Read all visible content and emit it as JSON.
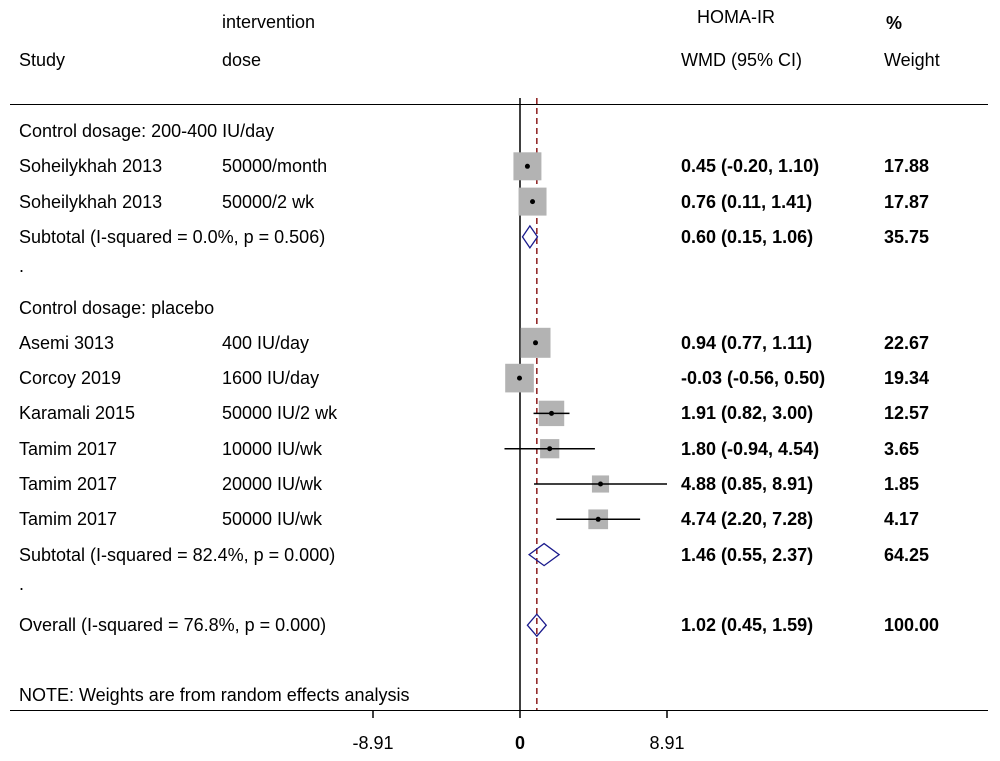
{
  "header": {
    "col_intervention_line1": "intervention",
    "col_intervention_line2": "dose",
    "col_study": "Study",
    "col_effect_line1": "HOMA-IR",
    "col_effect_line2": "WMD (95% CI)",
    "col_weight_line1": "%",
    "col_weight_line2": "Weight"
  },
  "note": "NOTE: Weights are from random effects analysis",
  "chart_data": {
    "type": "forest",
    "xlim": [
      -8.91,
      8.91
    ],
    "xticks": [
      "-8.91",
      "0",
      "8.91"
    ],
    "overall_line": 1.02,
    "rows": [
      {
        "kind": "group",
        "label": "Control dosage: 200-400 IU/day"
      },
      {
        "kind": "study",
        "study": "Soheilykhah 2013",
        "dose": "50000/month",
        "est": 0.45,
        "lo": -0.2,
        "hi": 1.1,
        "ci_text": "0.45 (-0.20, 1.10)",
        "weight": 17.88,
        "weight_text": "17.88"
      },
      {
        "kind": "study",
        "study": "Soheilykhah 2013",
        "dose": "50000/2 wk",
        "est": 0.76,
        "lo": 0.11,
        "hi": 1.41,
        "ci_text": "0.76 (0.11, 1.41)",
        "weight": 17.87,
        "weight_text": "17.87"
      },
      {
        "kind": "subtotal",
        "label": "Subtotal  (I-squared = 0.0%, p = 0.506)",
        "est": 0.6,
        "lo": 0.15,
        "hi": 1.06,
        "ci_text": "0.60 (0.15, 1.06)",
        "weight_text": "35.75"
      },
      {
        "kind": "spacer",
        "label": "."
      },
      {
        "kind": "group",
        "label": "Control dosage: placebo"
      },
      {
        "kind": "study",
        "study": "Asemi 3013",
        "dose": "400 IU/day",
        "est": 0.94,
        "lo": 0.77,
        "hi": 1.11,
        "ci_text": "0.94 (0.77, 1.11)",
        "weight": 22.67,
        "weight_text": "22.67"
      },
      {
        "kind": "study",
        "study": "Corcoy 2019",
        "dose": "1600 IU/day",
        "est": -0.03,
        "lo": -0.56,
        "hi": 0.5,
        "ci_text": "-0.03 (-0.56, 0.50)",
        "weight": 19.34,
        "weight_text": "19.34"
      },
      {
        "kind": "study",
        "study": "Karamali 2015",
        "dose": "50000 IU/2 wk",
        "est": 1.91,
        "lo": 0.82,
        "hi": 3.0,
        "ci_text": "1.91 (0.82, 3.00)",
        "weight": 12.57,
        "weight_text": "12.57"
      },
      {
        "kind": "study",
        "study": "Tamim 2017",
        "dose": "10000 IU/wk",
        "est": 1.8,
        "lo": -0.94,
        "hi": 4.54,
        "ci_text": "1.80 (-0.94, 4.54)",
        "weight": 3.65,
        "weight_text": "3.65"
      },
      {
        "kind": "study",
        "study": "Tamim 2017",
        "dose": "20000 IU/wk",
        "est": 4.88,
        "lo": 0.85,
        "hi": 8.91,
        "ci_text": "4.88 (0.85, 8.91)",
        "weight": 1.85,
        "weight_text": "1.85"
      },
      {
        "kind": "study",
        "study": "Tamim 2017",
        "dose": "50000 IU/wk",
        "est": 4.74,
        "lo": 2.2,
        "hi": 7.28,
        "ci_text": "4.74 (2.20, 7.28)",
        "weight": 4.17,
        "weight_text": "4.17"
      },
      {
        "kind": "subtotal",
        "label": "Subtotal  (I-squared = 82.4%, p = 0.000)",
        "est": 1.46,
        "lo": 0.55,
        "hi": 2.37,
        "ci_text": "1.46 (0.55, 2.37)",
        "weight_text": "64.25"
      },
      {
        "kind": "spacer",
        "label": "."
      },
      {
        "kind": "overall",
        "label": "Overall  (I-squared = 76.8%, p = 0.000)",
        "est": 1.02,
        "lo": 0.45,
        "hi": 1.59,
        "ci_text": "1.02 (0.45, 1.59)",
        "weight_text": "100.00"
      }
    ]
  },
  "colors": {
    "square": "#b3b3b3",
    "diamond": "#1a1a8c",
    "null_line": "#000000",
    "overall_line": "#8b1a1a",
    "text": "#000000"
  }
}
